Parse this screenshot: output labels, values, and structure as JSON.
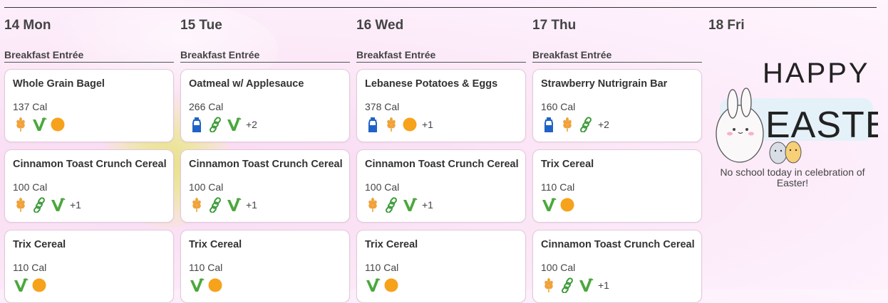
{
  "days": [
    {
      "header": "14 Mon",
      "section": "Breakfast Entrée",
      "items": [
        {
          "name": "Whole Grain Bagel",
          "cal": "137 Cal",
          "icons": [
            "grain-icon",
            "vegetarian-icon",
            "fruit-icon"
          ],
          "more": ""
        },
        {
          "name": "Cinnamon Toast Crunch Cereal",
          "cal": "100 Cal",
          "icons": [
            "grain-icon",
            "chain-icon",
            "vegetarian-icon"
          ],
          "more": "+1"
        },
        {
          "name": "Trix Cereal",
          "cal": "110 Cal",
          "icons": [
            "vegetarian-icon",
            "fruit-icon"
          ],
          "more": ""
        }
      ]
    },
    {
      "header": "15 Tue",
      "section": "Breakfast Entrée",
      "items": [
        {
          "name": "Oatmeal w/ Applesauce",
          "cal": "266 Cal",
          "icons": [
            "milk-icon",
            "chain-icon",
            "vegetarian-icon"
          ],
          "more": "+2"
        },
        {
          "name": "Cinnamon Toast Crunch Cereal",
          "cal": "100 Cal",
          "icons": [
            "grain-icon",
            "chain-icon",
            "vegetarian-icon"
          ],
          "more": "+1"
        },
        {
          "name": "Trix Cereal",
          "cal": "110 Cal",
          "icons": [
            "vegetarian-icon",
            "fruit-icon"
          ],
          "more": ""
        }
      ]
    },
    {
      "header": "16 Wed",
      "section": "Breakfast Entrée",
      "items": [
        {
          "name": "Lebanese Potatoes & Eggs",
          "cal": "378 Cal",
          "icons": [
            "milk-icon",
            "grain-icon",
            "fruit-icon"
          ],
          "more": "+1"
        },
        {
          "name": "Cinnamon Toast Crunch Cereal",
          "cal": "100 Cal",
          "icons": [
            "grain-icon",
            "chain-icon",
            "vegetarian-icon"
          ],
          "more": "+1"
        },
        {
          "name": "Trix Cereal",
          "cal": "110 Cal",
          "icons": [
            "vegetarian-icon",
            "fruit-icon"
          ],
          "more": ""
        }
      ]
    },
    {
      "header": "17 Thu",
      "section": "Breakfast Entrée",
      "items": [
        {
          "name": "Strawberry Nutrigrain Bar",
          "cal": "160 Cal",
          "icons": [
            "milk-icon",
            "grain-icon",
            "chain-icon"
          ],
          "more": "+2"
        },
        {
          "name": "Trix Cereal",
          "cal": "110 Cal",
          "icons": [
            "vegetarian-icon",
            "fruit-icon"
          ],
          "more": ""
        },
        {
          "name": "Cinnamon Toast Crunch Cereal",
          "cal": "100 Cal",
          "icons": [
            "grain-icon",
            "chain-icon",
            "vegetarian-icon"
          ],
          "more": "+1"
        }
      ]
    }
  ],
  "friday": {
    "header": "18 Fri",
    "image_text_line1": "HAPPY",
    "image_text_line2": "EASTER!",
    "note": "No school today in celebration of Easter!"
  },
  "colors": {
    "grain": "#f0a23a",
    "vegetarian": "#4aa83c",
    "fruit": "#f7a21b",
    "milk": "#1f63c6",
    "chain": "#3d9a3a"
  }
}
